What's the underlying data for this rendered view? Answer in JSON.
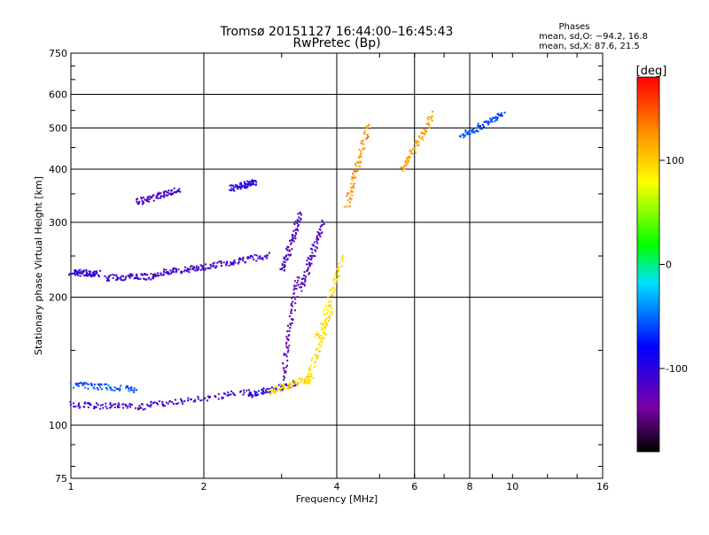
{
  "chart_data": {
    "type": "scatter",
    "title": "Tromsø 20151127 16:44:00–16:45:43",
    "subtitle": "RwPretec (Bp)",
    "xlabel": "Frequency [MHz]",
    "ylabel": "Stationary phase Virtual Height [km]",
    "x_scale": "log",
    "y_scale": "log",
    "xlim": [
      1,
      16
    ],
    "ylim": [
      75,
      750
    ],
    "x_ticks": [
      1,
      2,
      4,
      6,
      8,
      10,
      16
    ],
    "y_ticks": [
      75,
      100,
      200,
      300,
      400,
      500,
      600,
      750
    ],
    "x_gridlines": [
      2,
      4,
      6,
      8
    ],
    "y_gridlines": [
      100,
      200,
      300,
      400,
      500,
      600
    ],
    "grid": true,
    "stats": {
      "heading": "Phases",
      "line1": "mean, sd,O: −94.2, 16.8",
      "line2": "mean, sd,X:  87.6, 21.5"
    },
    "colorbar": {
      "label": "[deg]",
      "ticks": [
        100,
        0,
        -100
      ],
      "range": [
        -180,
        180
      ],
      "colormap": "rainbow",
      "placement": "right"
    },
    "series": [
      {
        "traces": [
          {
            "f": [
              1.0,
              1.15
            ],
            "h": [
              230,
              228
            ],
            "phase": -105
          },
          {
            "f": [
              1.2,
              1.55
            ],
            "h": [
              223,
              225
            ],
            "phase": -110
          },
          {
            "f": [
              1.55,
              2.0
            ],
            "h": [
              228,
              237
            ],
            "phase": -110
          },
          {
            "f": [
              2.0,
              2.8
            ],
            "h": [
              236,
              252
            ],
            "phase": -108
          },
          {
            "f": [
              1.4,
              1.75
            ],
            "h": [
              335,
              360
            ],
            "phase": -112
          },
          {
            "f": [
              2.3,
              2.6
            ],
            "h": [
              362,
              375
            ],
            "phase": -100
          },
          {
            "f": [
              1.0,
              1.5
            ],
            "h": [
              112,
              111
            ],
            "phase": -112
          },
          {
            "f": [
              1.5,
              2.5
            ],
            "h": [
              112,
              120
            ],
            "phase": -110
          },
          {
            "f": [
              2.5,
              3.2
            ],
            "h": [
              118,
              126
            ],
            "phase": -95
          },
          {
            "f": [
              1.0,
              1.4
            ],
            "h": [
              125,
              122
            ],
            "phase": -55
          },
          {
            "f": [
              3.0,
              3.3
            ],
            "h": [
              230,
              318
            ],
            "phase": -118
          },
          {
            "f": [
              3.0,
              3.25
            ],
            "h": [
              130,
              225
            ],
            "phase": -125
          },
          {
            "f": [
              3.3,
              3.7
            ],
            "h": [
              210,
              300
            ],
            "phase": -115
          },
          {
            "f": [
              2.8,
              3.5
            ],
            "h": [
              120,
              130
            ],
            "phase": 95
          },
          {
            "f": [
              3.4,
              3.9
            ],
            "h": [
              125,
              190
            ],
            "phase": 92
          },
          {
            "f": [
              3.6,
              4.1
            ],
            "h": [
              160,
              250
            ],
            "phase": 90
          },
          {
            "f": [
              4.2,
              4.7
            ],
            "h": [
              330,
              510
            ],
            "phase": 125
          },
          {
            "f": [
              5.6,
              6.6
            ],
            "h": [
              400,
              540
            ],
            "phase": 120
          },
          {
            "f": [
              7.6,
              9.5
            ],
            "h": [
              480,
              540
            ],
            "phase": -60
          }
        ]
      }
    ]
  }
}
